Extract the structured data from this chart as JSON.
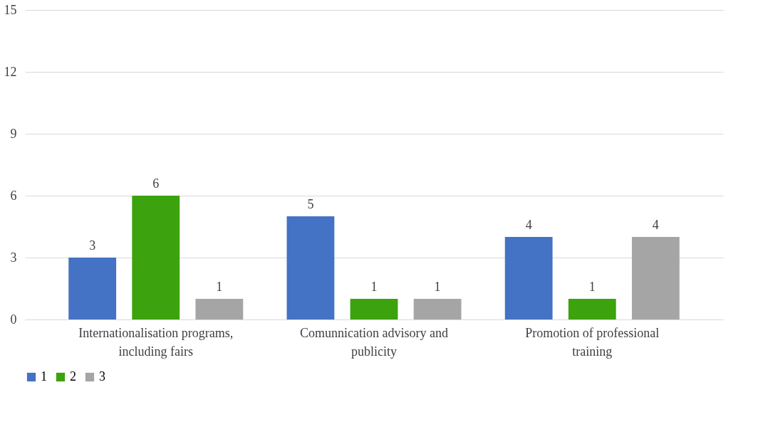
{
  "chart_data": {
    "type": "bar",
    "categories": [
      "Internationalisation programs, including fairs",
      "Comunnication advisory and publicity",
      "Promotion of professional training"
    ],
    "series": [
      {
        "name": "1",
        "color": "#4472c4",
        "values": [
          3,
          5,
          4
        ]
      },
      {
        "name": "2",
        "color": "#3ca20e",
        "values": [
          6,
          1,
          1
        ]
      },
      {
        "name": "3",
        "color": "#a5a5a5",
        "values": [
          1,
          1,
          4
        ]
      }
    ],
    "ylim": [
      0,
      15
    ],
    "yticks": [
      0,
      3,
      6,
      9,
      12,
      15
    ],
    "grid": "y",
    "legend": "bottom",
    "data_labels": true
  }
}
